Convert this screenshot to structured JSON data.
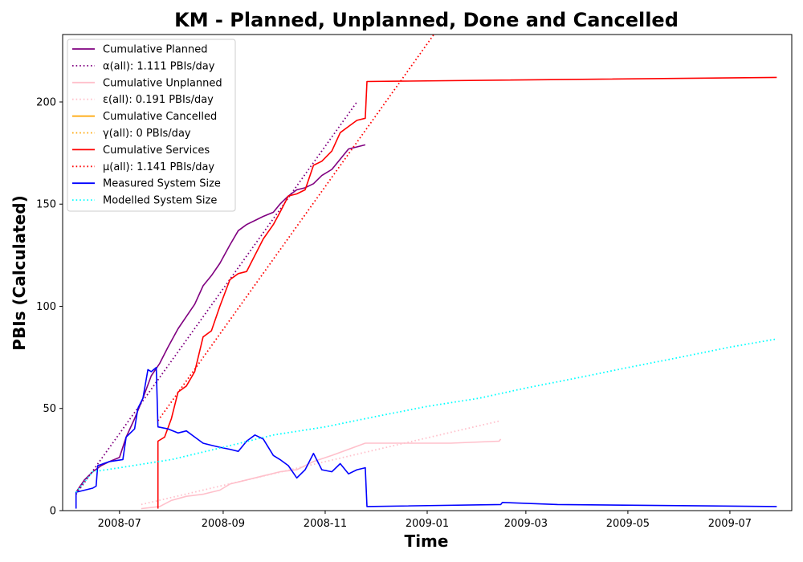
{
  "chart_data": {
    "type": "line",
    "title": "KM - Planned, Unplanned, Done  and Cancelled",
    "xlabel": "Time",
    "ylabel": "PBIs (Calculated)",
    "xlim": [
      "2008-05-28",
      "2009-08-07"
    ],
    "ylim": [
      0,
      233
    ],
    "x_ticks": [
      "2008-07",
      "2008-09",
      "2008-11",
      "2009-01",
      "2009-03",
      "2009-05",
      "2009-07"
    ],
    "y_ticks": [
      0,
      50,
      100,
      150,
      200
    ],
    "grid": false,
    "legend_position": "top-left",
    "series": [
      {
        "name": "Cumulative Planned",
        "color": "#800080",
        "style": "solid",
        "points": [
          [
            "2008-06-05",
            9
          ],
          [
            "2008-06-10",
            15
          ],
          [
            "2008-06-15",
            19
          ],
          [
            "2008-06-20",
            22
          ],
          [
            "2008-06-25",
            24
          ],
          [
            "2008-07-01",
            26
          ],
          [
            "2008-07-05",
            36
          ],
          [
            "2008-07-10",
            45
          ],
          [
            "2008-07-15",
            55
          ],
          [
            "2008-07-20",
            66
          ],
          [
            "2008-07-25",
            72
          ],
          [
            "2008-07-30",
            80
          ],
          [
            "2008-08-05",
            89
          ],
          [
            "2008-08-10",
            95
          ],
          [
            "2008-08-15",
            101
          ],
          [
            "2008-08-20",
            110
          ],
          [
            "2008-08-25",
            115
          ],
          [
            "2008-08-30",
            121
          ],
          [
            "2008-09-05",
            130
          ],
          [
            "2008-09-10",
            137
          ],
          [
            "2008-09-15",
            140
          ],
          [
            "2008-09-20",
            142
          ],
          [
            "2008-09-25",
            144
          ],
          [
            "2008-10-01",
            146
          ],
          [
            "2008-10-05",
            150
          ],
          [
            "2008-10-10",
            154
          ],
          [
            "2008-10-15",
            157
          ],
          [
            "2008-10-20",
            158
          ],
          [
            "2008-10-25",
            160
          ],
          [
            "2008-10-30",
            164
          ],
          [
            "2008-11-05",
            167
          ],
          [
            "2008-11-10",
            172
          ],
          [
            "2008-11-15",
            177
          ],
          [
            "2008-11-20",
            178
          ],
          [
            "2008-11-25",
            179
          ]
        ]
      },
      {
        "name": "α(all): 1.111 PBIs/day",
        "color": "#800080",
        "style": "dotted",
        "points": [
          [
            "2008-06-05",
            8
          ],
          [
            "2008-11-20",
            200
          ]
        ]
      },
      {
        "name": "Cumulative Unplanned",
        "color": "#ffc0cb",
        "style": "solid",
        "points": [
          [
            "2008-07-14",
            1
          ],
          [
            "2008-07-25",
            2
          ],
          [
            "2008-08-01",
            5
          ],
          [
            "2008-08-10",
            7
          ],
          [
            "2008-08-20",
            8
          ],
          [
            "2008-08-30",
            10
          ],
          [
            "2008-09-05",
            13
          ],
          [
            "2008-09-15",
            15
          ],
          [
            "2008-09-25",
            17
          ],
          [
            "2008-10-05",
            19
          ],
          [
            "2008-10-15",
            20
          ],
          [
            "2008-10-25",
            24
          ],
          [
            "2008-11-05",
            27
          ],
          [
            "2008-11-15",
            30
          ],
          [
            "2008-11-25",
            33
          ],
          [
            "2008-12-15",
            33
          ],
          [
            "2009-01-15",
            33
          ],
          [
            "2009-02-13",
            34
          ],
          [
            "2009-02-14",
            35
          ]
        ]
      },
      {
        "name": "ε(all): 0.191 PBIs/day",
        "color": "#ffc0cb",
        "style": "dotted",
        "points": [
          [
            "2008-07-14",
            3
          ],
          [
            "2009-02-14",
            44
          ]
        ]
      },
      {
        "name": "Cumulative Cancelled",
        "color": "#ffa500",
        "style": "solid",
        "points": []
      },
      {
        "name": "γ(all): 0 PBIs/day",
        "color": "#ffa500",
        "style": "dotted",
        "points": []
      },
      {
        "name": "Cumulative Services",
        "color": "#ff0000",
        "style": "solid",
        "points": [
          [
            "2008-07-24",
            1
          ],
          [
            "2008-07-24",
            34
          ],
          [
            "2008-07-28",
            36
          ],
          [
            "2008-08-01",
            45
          ],
          [
            "2008-08-05",
            58
          ],
          [
            "2008-08-10",
            61
          ],
          [
            "2008-08-15",
            68
          ],
          [
            "2008-08-20",
            85
          ],
          [
            "2008-08-25",
            88
          ],
          [
            "2008-08-30",
            100
          ],
          [
            "2008-09-05",
            113
          ],
          [
            "2008-09-10",
            116
          ],
          [
            "2008-09-15",
            117
          ],
          [
            "2008-09-20",
            125
          ],
          [
            "2008-09-25",
            133
          ],
          [
            "2008-10-01",
            140
          ],
          [
            "2008-10-05",
            146
          ],
          [
            "2008-10-10",
            154
          ],
          [
            "2008-10-15",
            155
          ],
          [
            "2008-10-20",
            157
          ],
          [
            "2008-10-25",
            169
          ],
          [
            "2008-10-30",
            171
          ],
          [
            "2008-11-05",
            176
          ],
          [
            "2008-11-10",
            185
          ],
          [
            "2008-11-15",
            188
          ],
          [
            "2008-11-20",
            191
          ],
          [
            "2008-11-25",
            192
          ],
          [
            "2008-11-26",
            210
          ],
          [
            "2009-07-29",
            212
          ]
        ]
      },
      {
        "name": "μ(all): 1.141 PBIs/day",
        "color": "#ff0000",
        "style": "dotted",
        "points": [
          [
            "2008-07-24",
            44
          ],
          [
            "2009-01-05",
            233
          ]
        ]
      },
      {
        "name": "Measured System Size",
        "color": "#0000ff",
        "style": "solid",
        "points": [
          [
            "2008-06-05",
            1
          ],
          [
            "2008-06-05",
            9
          ],
          [
            "2008-06-15",
            11
          ],
          [
            "2008-06-17",
            12
          ],
          [
            "2008-06-18",
            22
          ],
          [
            "2008-06-25",
            24
          ],
          [
            "2008-07-03",
            25
          ],
          [
            "2008-07-05",
            36
          ],
          [
            "2008-07-10",
            40
          ],
          [
            "2008-07-12",
            50
          ],
          [
            "2008-07-15",
            55
          ],
          [
            "2008-07-18",
            69
          ],
          [
            "2008-07-20",
            68
          ],
          [
            "2008-07-23",
            70
          ],
          [
            "2008-07-24",
            41
          ],
          [
            "2008-07-30",
            40
          ],
          [
            "2008-08-05",
            38
          ],
          [
            "2008-08-10",
            39
          ],
          [
            "2008-08-15",
            36
          ],
          [
            "2008-08-20",
            33
          ],
          [
            "2008-08-25",
            32
          ],
          [
            "2008-08-30",
            31
          ],
          [
            "2008-09-05",
            30
          ],
          [
            "2008-09-10",
            29
          ],
          [
            "2008-09-15",
            34
          ],
          [
            "2008-09-20",
            37
          ],
          [
            "2008-09-25",
            35
          ],
          [
            "2008-10-01",
            27
          ],
          [
            "2008-10-05",
            25
          ],
          [
            "2008-10-10",
            22
          ],
          [
            "2008-10-15",
            16
          ],
          [
            "2008-10-20",
            20
          ],
          [
            "2008-10-25",
            28
          ],
          [
            "2008-10-30",
            20
          ],
          [
            "2008-11-05",
            19
          ],
          [
            "2008-11-10",
            23
          ],
          [
            "2008-11-15",
            18
          ],
          [
            "2008-11-20",
            20
          ],
          [
            "2008-11-25",
            21
          ],
          [
            "2008-11-26",
            2
          ],
          [
            "2009-02-14",
            3
          ],
          [
            "2009-02-15",
            4
          ],
          [
            "2009-03-20",
            3
          ],
          [
            "2009-07-29",
            2
          ]
        ]
      },
      {
        "name": "Modelled System Size",
        "color": "#00ffff",
        "style": "dotted",
        "points": [
          [
            "2008-06-05",
            9
          ],
          [
            "2008-06-15",
            19
          ],
          [
            "2008-07-01",
            21
          ],
          [
            "2008-08-01",
            25
          ],
          [
            "2008-09-01",
            31
          ],
          [
            "2008-10-01",
            37
          ],
          [
            "2008-11-01",
            41
          ],
          [
            "2008-12-01",
            46
          ],
          [
            "2009-01-01",
            51
          ],
          [
            "2009-02-01",
            55
          ],
          [
            "2009-03-01",
            60
          ],
          [
            "2009-04-01",
            65
          ],
          [
            "2009-05-01",
            70
          ],
          [
            "2009-06-01",
            75
          ],
          [
            "2009-07-01",
            80
          ],
          [
            "2009-07-29",
            84
          ]
        ]
      }
    ]
  }
}
